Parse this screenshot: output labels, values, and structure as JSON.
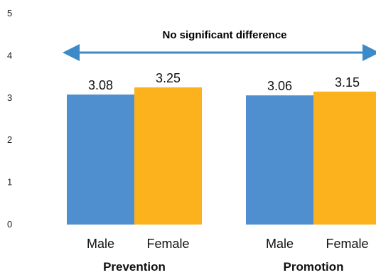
{
  "chart_data": {
    "type": "bar",
    "title": "",
    "xlabel": "",
    "ylabel": "",
    "ylim": [
      0,
      5
    ],
    "yticks": [
      "0",
      "1",
      "2",
      "3",
      "4",
      "5"
    ],
    "grid": false,
    "groups": [
      {
        "name": "Prevention",
        "bars": [
          {
            "category": "Male",
            "value": 3.08,
            "label": "3.08"
          },
          {
            "category": "Female",
            "value": 3.25,
            "label": "3.25"
          }
        ]
      },
      {
        "name": "Promotion",
        "bars": [
          {
            "category": "Male",
            "value": 3.06,
            "label": "3.06"
          },
          {
            "category": "Female",
            "value": 3.15,
            "label": "3.15"
          }
        ]
      }
    ],
    "annotation": "No significant difference"
  },
  "colors": {
    "Male": "#4f8ecf",
    "Female": "#fcb21c",
    "annotation": "#3c8ac8"
  }
}
